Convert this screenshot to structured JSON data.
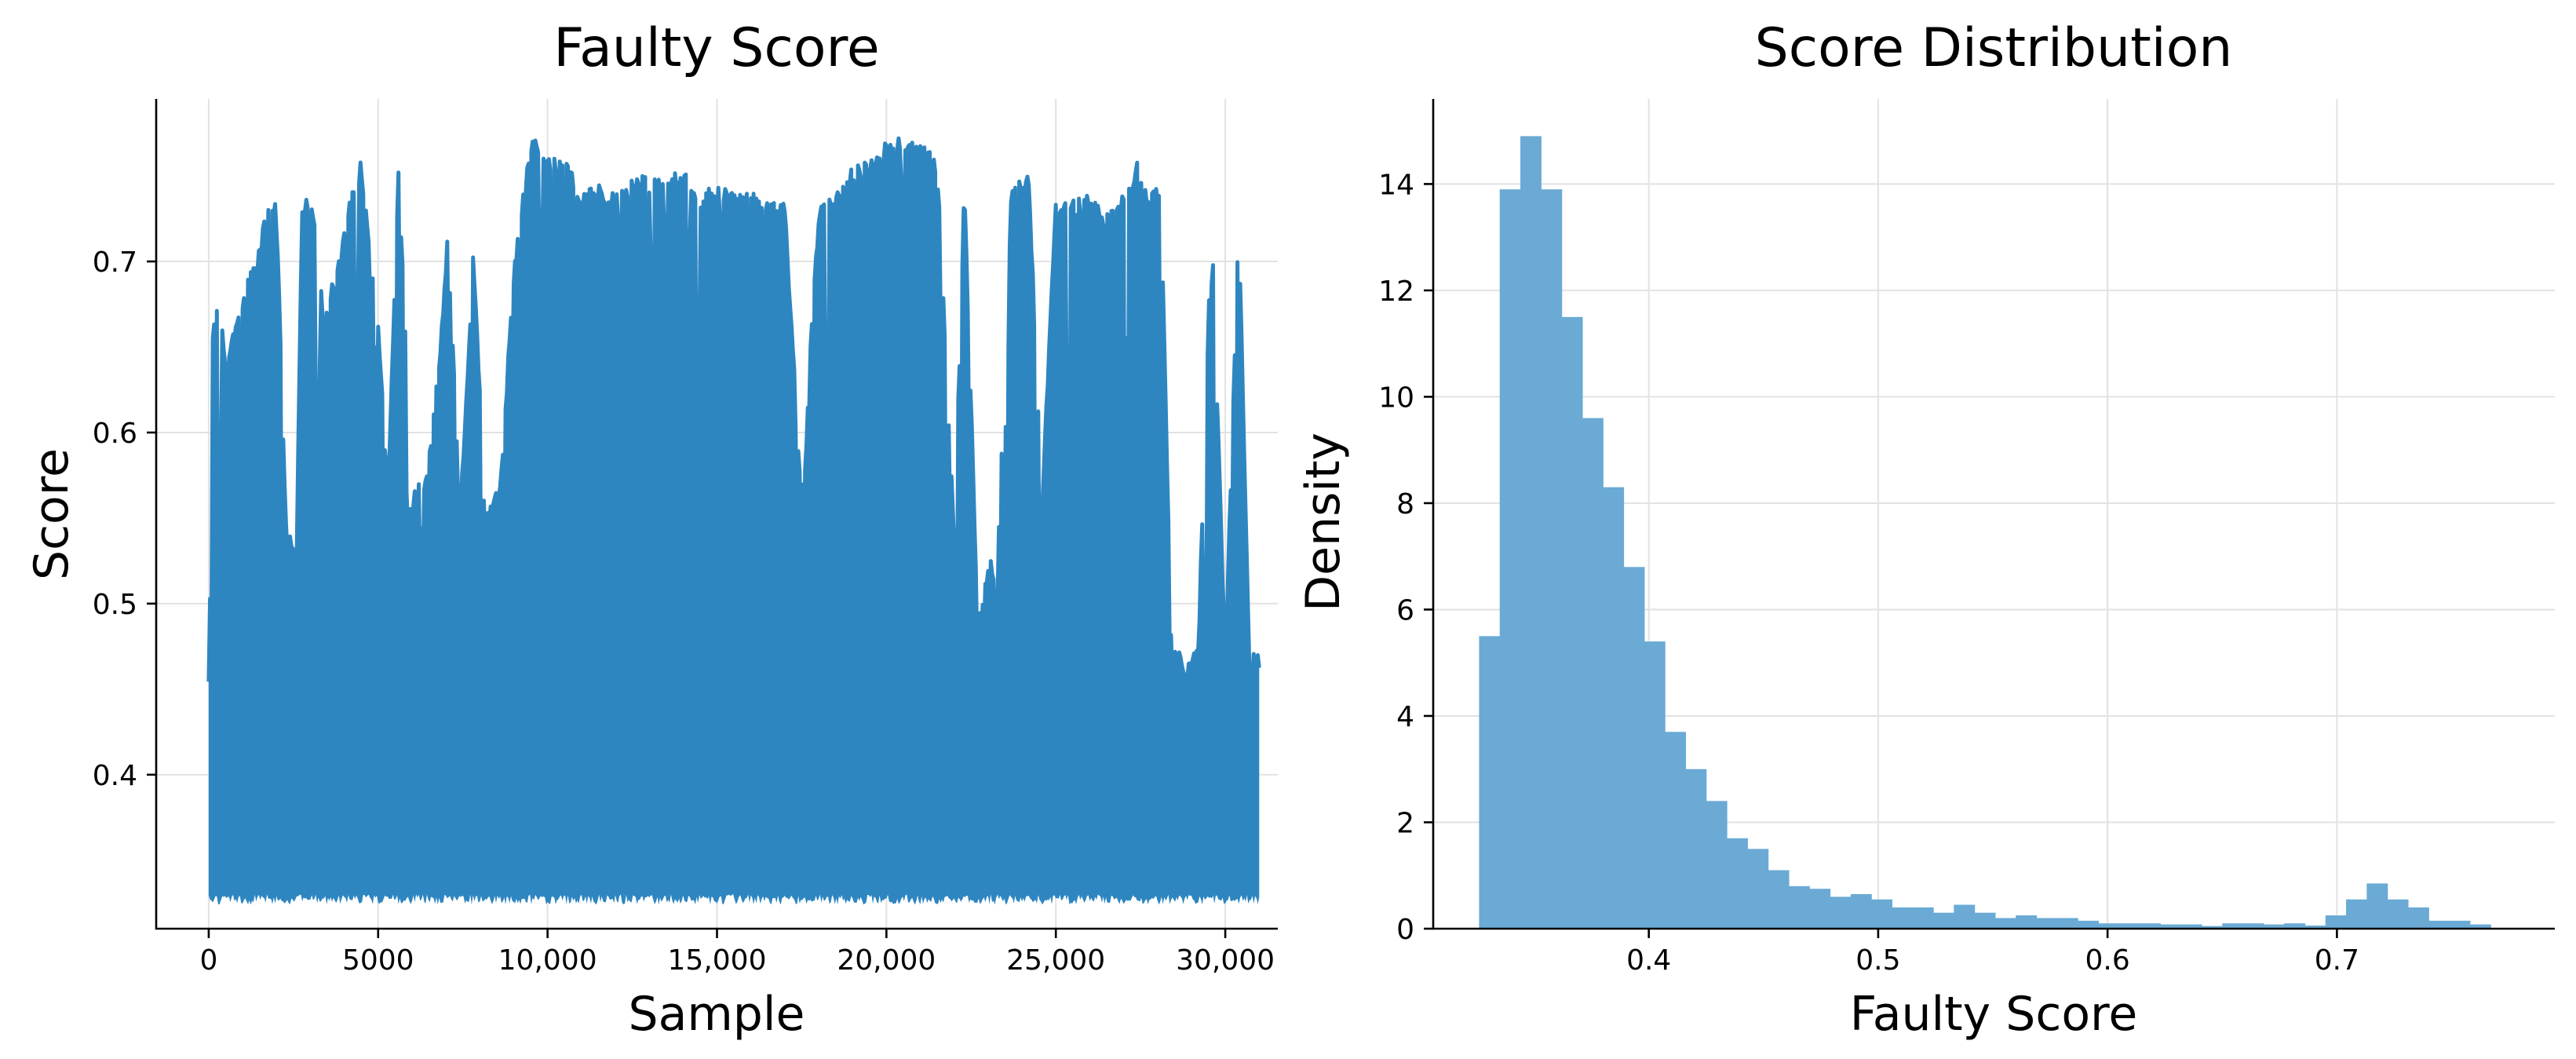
{
  "chart_data": [
    {
      "type": "line",
      "title": "Faulty Score",
      "xlabel": "Sample",
      "ylabel": "Score",
      "xlim": [
        -1550,
        31550
      ],
      "ylim": [
        0.31,
        0.795
      ],
      "xticks": [
        0,
        5000,
        10000,
        15000,
        20000,
        25000,
        30000
      ],
      "xtick_labels": [
        "0",
        "5000",
        "10,000",
        "15,000",
        "20,000",
        "25,000",
        "30,000"
      ],
      "yticks": [
        0.4,
        0.5,
        0.6,
        0.7
      ],
      "ytick_labels": [
        "0.4",
        "0.5",
        "0.6",
        "0.7"
      ],
      "grid": true,
      "color": "#2e86c1",
      "series": [
        {
          "x_range": [
            0,
            31000
          ],
          "baseline_band": [
            0.33,
            0.345
          ],
          "upper_envelope": [
            [
              0,
              0.46
            ],
            [
              100,
              0.655
            ],
            [
              300,
              0.685
            ],
            [
              500,
              0.64
            ],
            [
              800,
              0.665
            ],
            [
              1100,
              0.69
            ],
            [
              1400,
              0.7
            ],
            [
              1700,
              0.73
            ],
            [
              2000,
              0.735
            ],
            [
              2300,
              0.54
            ],
            [
              2600,
              0.54
            ],
            [
              2750,
              0.73
            ],
            [
              3000,
              0.745
            ],
            [
              3400,
              0.67
            ],
            [
              3800,
              0.7
            ],
            [
              4200,
              0.74
            ],
            [
              4500,
              0.76
            ],
            [
              5000,
              0.665
            ],
            [
              5300,
              0.565
            ],
            [
              5600,
              0.76
            ],
            [
              6000,
              0.565
            ],
            [
              6400,
              0.575
            ],
            [
              6800,
              0.64
            ],
            [
              7100,
              0.735
            ],
            [
              7400,
              0.545
            ],
            [
              7800,
              0.705
            ],
            [
              8200,
              0.555
            ],
            [
              8600,
              0.57
            ],
            [
              9000,
              0.695
            ],
            [
              9300,
              0.745
            ],
            [
              9600,
              0.775
            ],
            [
              10000,
              0.76
            ],
            [
              10500,
              0.765
            ],
            [
              11000,
              0.74
            ],
            [
              11500,
              0.745
            ],
            [
              12000,
              0.74
            ],
            [
              12500,
              0.75
            ],
            [
              13000,
              0.75
            ],
            [
              13500,
              0.75
            ],
            [
              14000,
              0.755
            ],
            [
              14500,
              0.74
            ],
            [
              15000,
              0.745
            ],
            [
              15500,
              0.74
            ],
            [
              16000,
              0.745
            ],
            [
              16500,
              0.735
            ],
            [
              17000,
              0.735
            ],
            [
              17500,
              0.565
            ],
            [
              18000,
              0.73
            ],
            [
              18500,
              0.745
            ],
            [
              19000,
              0.755
            ],
            [
              19500,
              0.76
            ],
            [
              20000,
              0.77
            ],
            [
              20500,
              0.775
            ],
            [
              21000,
              0.77
            ],
            [
              21500,
              0.76
            ],
            [
              22000,
              0.54
            ],
            [
              22300,
              0.745
            ],
            [
              22700,
              0.49
            ],
            [
              23000,
              0.52
            ],
            [
              23300,
              0.54
            ],
            [
              23700,
              0.745
            ],
            [
              24200,
              0.75
            ],
            [
              24600,
              0.565
            ],
            [
              25000,
              0.74
            ],
            [
              25400,
              0.735
            ],
            [
              25900,
              0.74
            ],
            [
              26400,
              0.73
            ],
            [
              26800,
              0.74
            ],
            [
              27100,
              0.74
            ],
            [
              27400,
              0.76
            ],
            [
              27700,
              0.74
            ],
            [
              28100,
              0.745
            ],
            [
              28400,
              0.485
            ],
            [
              28800,
              0.465
            ],
            [
              29200,
              0.48
            ],
            [
              29600,
              0.73
            ],
            [
              30000,
              0.47
            ],
            [
              30400,
              0.73
            ],
            [
              30700,
              0.475
            ],
            [
              31000,
              0.47
            ]
          ]
        }
      ]
    },
    {
      "type": "bar",
      "title": "Score Distribution",
      "xlabel": "Faulty Score",
      "ylabel": "Density",
      "xlim": [
        0.306,
        0.795
      ],
      "ylim": [
        0,
        15.6
      ],
      "xticks": [
        0.4,
        0.5,
        0.6,
        0.7
      ],
      "xtick_labels": [
        "0.4",
        "0.5",
        "0.6",
        "0.7"
      ],
      "yticks": [
        0,
        2,
        4,
        6,
        8,
        10,
        12,
        14
      ],
      "ytick_labels": [
        "0",
        "2",
        "4",
        "6",
        "8",
        "10",
        "12",
        "14"
      ],
      "grid": true,
      "color": "#6aaad5",
      "bin_start": 0.326,
      "bin_width": 0.009,
      "values": [
        5.5,
        13.9,
        14.9,
        13.9,
        11.5,
        9.6,
        8.3,
        6.8,
        5.4,
        3.7,
        3.0,
        2.4,
        1.7,
        1.5,
        1.1,
        0.8,
        0.75,
        0.6,
        0.65,
        0.55,
        0.4,
        0.4,
        0.3,
        0.45,
        0.3,
        0.2,
        0.25,
        0.2,
        0.2,
        0.15,
        0.1,
        0.1,
        0.1,
        0.08,
        0.08,
        0.05,
        0.1,
        0.1,
        0.08,
        0.1,
        0.06,
        0.25,
        0.55,
        0.85,
        0.55,
        0.4,
        0.15,
        0.15,
        0.08
      ]
    }
  ]
}
